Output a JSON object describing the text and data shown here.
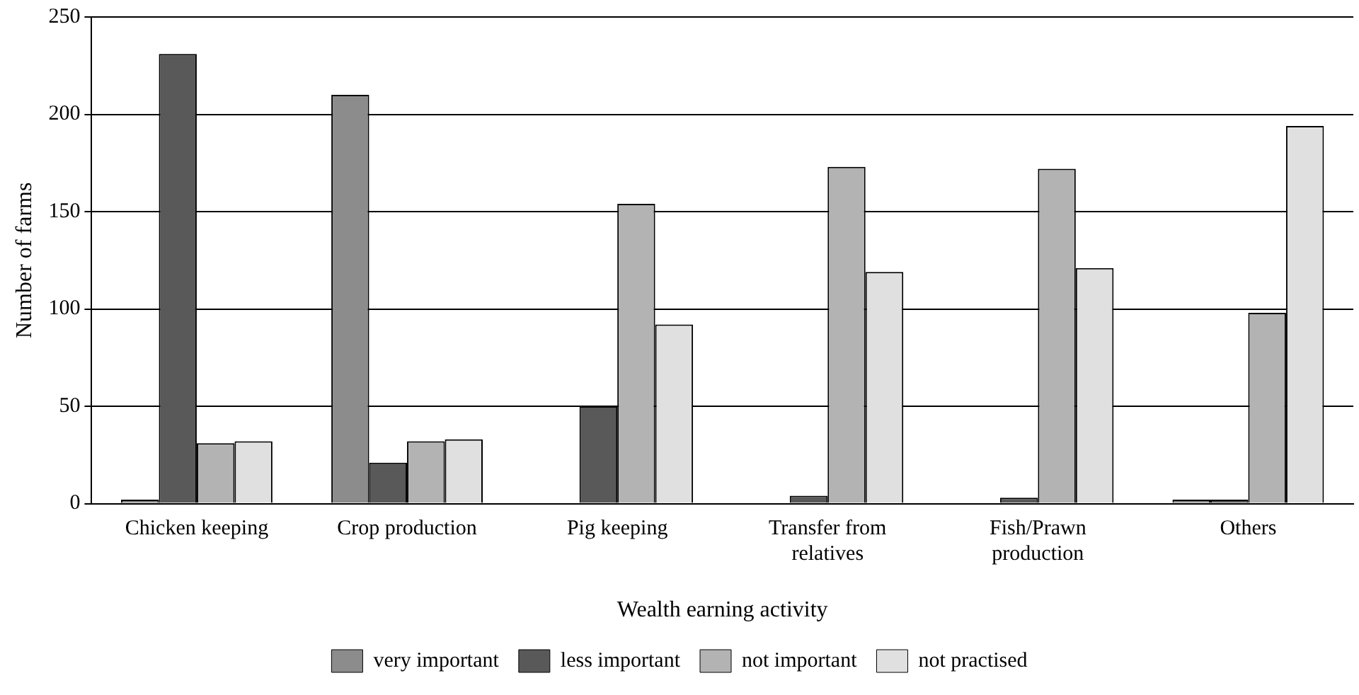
{
  "chart_data": {
    "type": "bar",
    "xlabel": "Wealth earning activity",
    "ylabel": "Number of farms",
    "categories": [
      "Chicken keeping",
      "Crop production",
      "Pig keeping",
      "Transfer from relatives",
      "Fish/Prawn production",
      "Others"
    ],
    "series": [
      {
        "name": "very important",
        "color": "#8c8c8c",
        "values": [
          2,
          210,
          0,
          0,
          0,
          2
        ]
      },
      {
        "name": "less important",
        "color": "#595959",
        "values": [
          231,
          21,
          50,
          4,
          3,
          2
        ]
      },
      {
        "name": "not important",
        "color": "#b3b3b3",
        "values": [
          31,
          32,
          154,
          173,
          172,
          98
        ]
      },
      {
        "name": "not practised",
        "color": "#e0e0e0",
        "values": [
          32,
          33,
          92,
          119,
          121,
          194
        ]
      }
    ],
    "ylim": [
      0,
      250
    ],
    "yticks": [
      0,
      50,
      100,
      150,
      200,
      250
    ],
    "grid": "y",
    "legend": "bottom"
  }
}
